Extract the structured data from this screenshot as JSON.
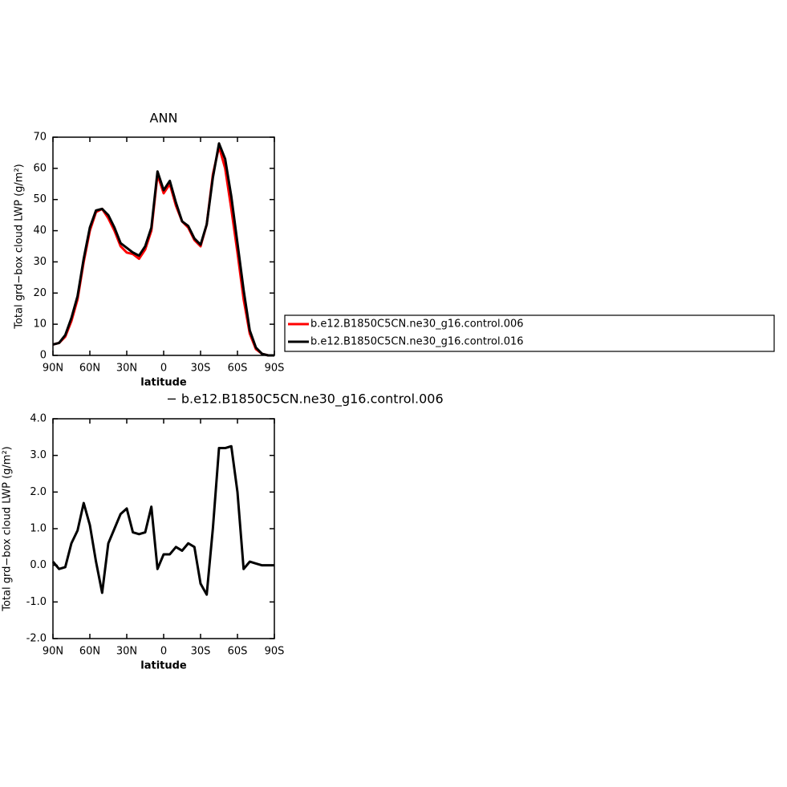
{
  "chart_data": [
    {
      "type": "line",
      "title": "ANN",
      "xlabel": "latitude",
      "ylabel": "Total grd−box cloud LWP (g/m²)",
      "x": [
        90,
        85,
        80,
        75,
        70,
        65,
        60,
        55,
        50,
        45,
        40,
        35,
        30,
        25,
        20,
        15,
        10,
        5,
        0,
        -5,
        -10,
        -15,
        -20,
        -25,
        -30,
        -35,
        -40,
        -45,
        -50,
        -55,
        -60,
        -65,
        -70,
        -75,
        -80,
        -85,
        -90
      ],
      "series": [
        {
          "name": "b.e12.B1850C5CN.ne30_g16.control.006",
          "color": "#ff0000",
          "values": [
            3.5,
            4,
            6,
            11,
            18,
            30,
            40,
            46,
            47,
            44,
            40,
            35,
            33,
            32.5,
            31,
            34,
            40,
            58,
            52,
            55,
            48,
            43,
            41,
            37,
            35,
            42,
            58,
            67,
            60,
            47,
            33,
            18,
            7,
            2,
            0.5,
            0,
            0
          ]
        },
        {
          "name": "b.e12.B1850C5CN.ne30_g16.control.016",
          "color": "#000000",
          "values": [
            3.5,
            4,
            6.5,
            12,
            19,
            31,
            41,
            46.5,
            47,
            45,
            41,
            36,
            34.5,
            33,
            32,
            35,
            41,
            59,
            53,
            56,
            49,
            43,
            41.5,
            37.5,
            35.5,
            42,
            57,
            68,
            63,
            51,
            36,
            21,
            8,
            2.5,
            0.5,
            0,
            0
          ]
        }
      ],
      "xlim": [
        90,
        -90
      ],
      "xticks": [
        {
          "value": 90,
          "label": "90N"
        },
        {
          "value": 60,
          "label": "60N"
        },
        {
          "value": 30,
          "label": "30N"
        },
        0,
        {
          "value": -30,
          "label": "30S"
        },
        {
          "value": -60,
          "label": "60S"
        },
        {
          "value": -90,
          "label": "90S"
        }
      ],
      "ylim": [
        0,
        70
      ],
      "yticks": [
        0,
        10,
        20,
        30,
        40,
        50,
        60,
        70
      ],
      "legend": "right"
    },
    {
      "type": "line",
      "title": "− b.e12.B1850C5CN.ne30_g16.control.006",
      "xlabel": "latitude",
      "ylabel": "Total grd−box cloud LWP (g/m²)",
      "x": [
        90,
        85,
        80,
        75,
        70,
        65,
        60,
        55,
        50,
        45,
        40,
        35,
        30,
        25,
        20,
        15,
        10,
        5,
        0,
        -5,
        -10,
        -15,
        -20,
        -25,
        -30,
        -35,
        -40,
        -45,
        -50,
        -55,
        -60,
        -65,
        -70,
        -75,
        -80,
        -85,
        -90
      ],
      "values": [
        0.1,
        -0.1,
        -0.05,
        0.6,
        0.95,
        1.7,
        1.1,
        0.1,
        -0.75,
        0.6,
        1.0,
        1.4,
        1.55,
        0.9,
        0.85,
        0.9,
        1.6,
        -0.1,
        0.3,
        0.3,
        0.5,
        0.4,
        0.6,
        0.5,
        -0.5,
        -0.8,
        1.0,
        3.2,
        3.2,
        3.25,
        2.0,
        -0.1,
        0.1,
        0.05,
        0,
        0,
        0
      ],
      "color": "#000000",
      "xlim": [
        90,
        -90
      ],
      "xticks": [
        {
          "value": 90,
          "label": "90N"
        },
        {
          "value": 60,
          "label": "60N"
        },
        {
          "value": 30,
          "label": "30N"
        },
        0,
        {
          "value": -30,
          "label": "30S"
        },
        {
          "value": -60,
          "label": "60S"
        },
        {
          "value": -90,
          "label": "90S"
        }
      ],
      "ylim": [
        -2,
        4
      ],
      "yticks": [
        {
          "value": -2,
          "label": "-2.0"
        },
        {
          "value": -1,
          "label": "-1.0"
        },
        {
          "value": 0,
          "label": "0.0"
        },
        {
          "value": 1,
          "label": "1.0"
        },
        {
          "value": 2,
          "label": "2.0"
        },
        {
          "value": 3,
          "label": "3.0"
        },
        {
          "value": 4,
          "label": "4.0"
        }
      ]
    }
  ]
}
